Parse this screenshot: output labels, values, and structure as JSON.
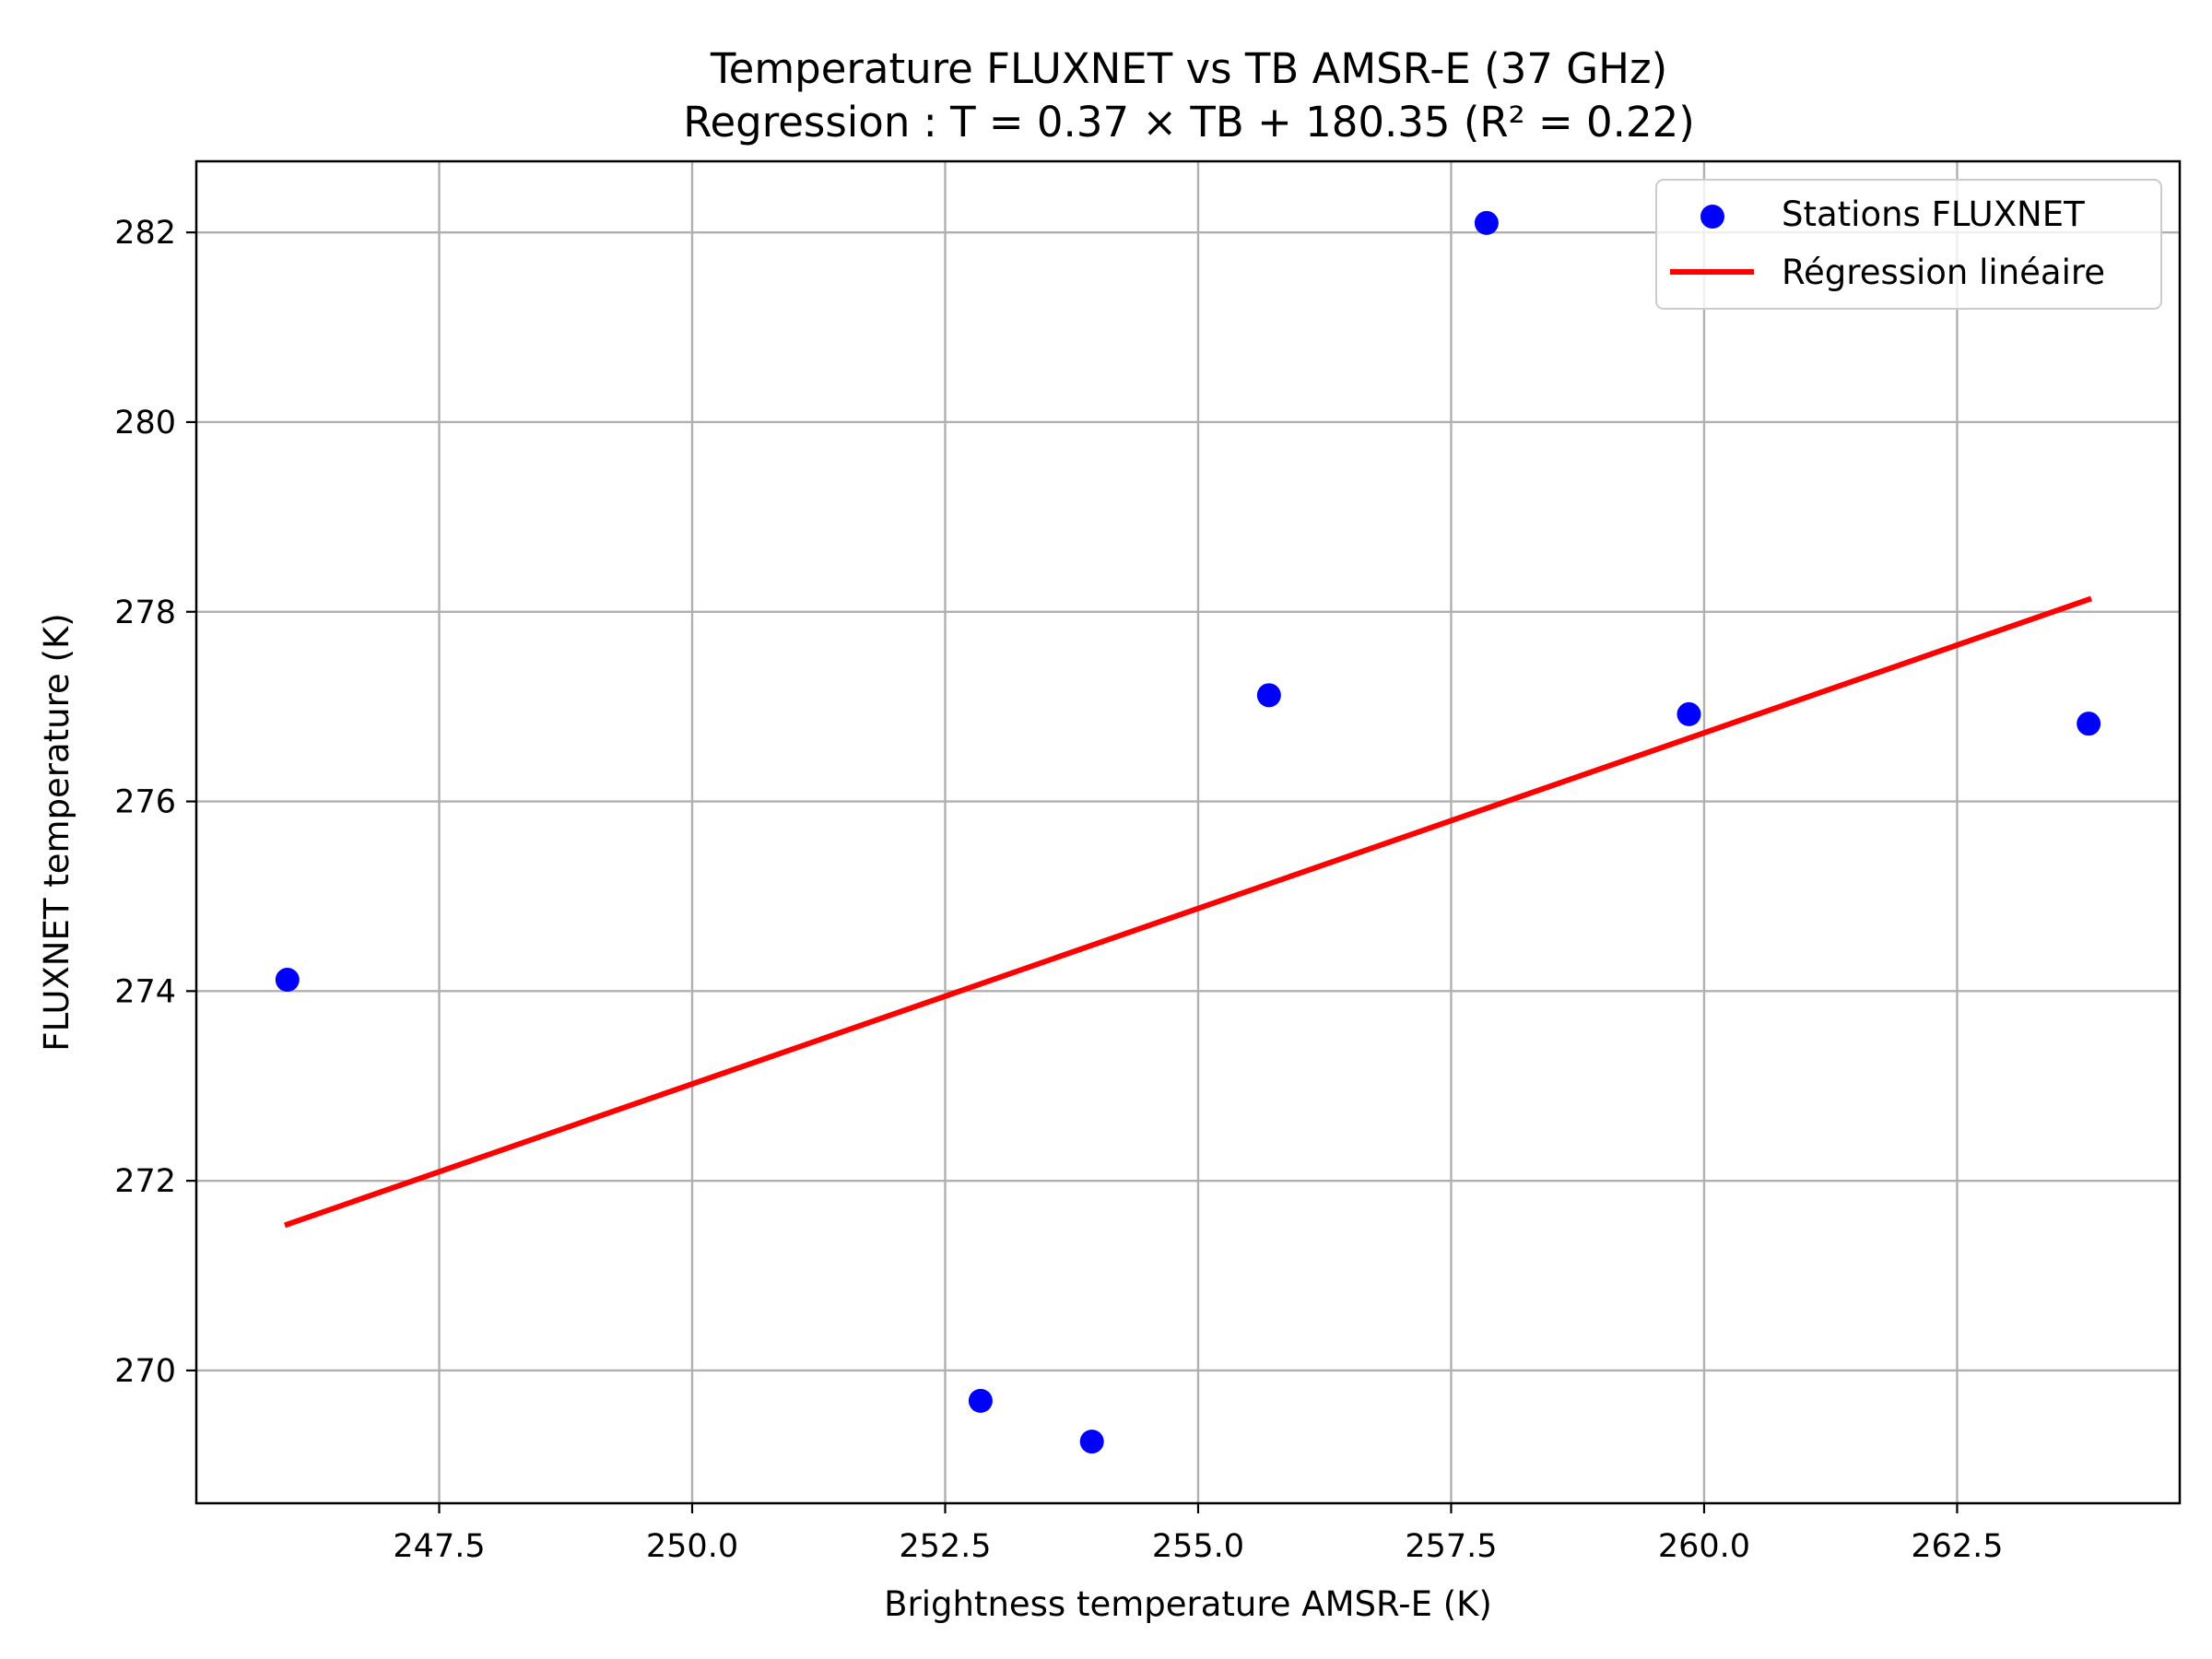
{
  "chart_data": {
    "type": "scatter",
    "title": "Temperature FLUXNET vs TB AMSR-E (37 GHz)",
    "subtitle": "Regression : T = 0.37 × TB + 180.35 (R² = 0.22)",
    "xlabel": "Brightness temperature AMSR-E (K)",
    "ylabel": "FLUXNET temperature (K)",
    "xlim": [
      245.1,
      264.7
    ],
    "ylim": [
      268.6,
      282.75
    ],
    "xticks": [
      247.5,
      250.0,
      252.5,
      255.0,
      257.5,
      260.0,
      262.5
    ],
    "xtick_labels": [
      "247.5",
      "250.0",
      "252.5",
      "255.0",
      "257.5",
      "260.0",
      "262.5"
    ],
    "yticks": [
      270,
      272,
      274,
      276,
      278,
      280,
      282
    ],
    "ytick_labels": [
      "270",
      "272",
      "274",
      "276",
      "278",
      "280",
      "282"
    ],
    "grid": true,
    "legend_position": "top-right",
    "series": [
      {
        "name": "Stations FLUXNET",
        "kind": "scatter",
        "color": "#0000ff",
        "x": [
          246.0,
          252.85,
          253.95,
          255.7,
          257.85,
          259.85,
          263.8
        ],
        "y": [
          274.12,
          269.68,
          269.25,
          277.12,
          282.1,
          276.92,
          276.82
        ]
      },
      {
        "name": "Régression linéaire",
        "kind": "line",
        "color": "#ff0000",
        "x": [
          246.0,
          263.8
        ],
        "y": [
          271.54,
          278.13
        ]
      }
    ]
  }
}
